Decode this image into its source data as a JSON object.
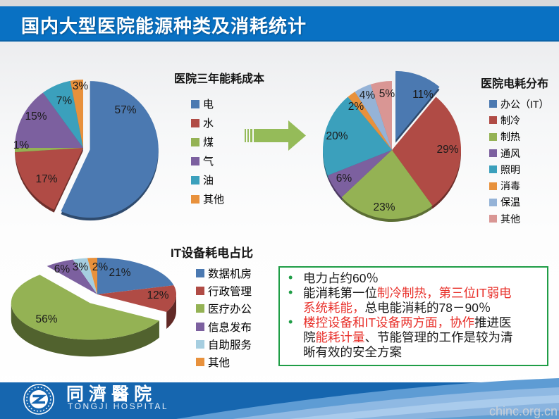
{
  "slide": {
    "title": "国内大型医院能源种类及消耗统计",
    "watermark": "chinc.org.cn"
  },
  "theme": {
    "titlebar_color": "#0971C3",
    "footer_color": "#1666AF",
    "arrow_color": "#95BB59"
  },
  "chart_data": [
    {
      "type": "pie",
      "title": "医院三年能耗成本",
      "categories": [
        "电",
        "水",
        "煤",
        "气",
        "油",
        "其他"
      ],
      "values": [
        57,
        17,
        1,
        15,
        7,
        3
      ],
      "labels": [
        "57%",
        "17%",
        "1%",
        "15%",
        "7%",
        "3%"
      ],
      "colors": [
        "#4B79B1",
        "#B04B45",
        "#94B254",
        "#7C609F",
        "#3BA0BC",
        "#E8913C"
      ],
      "exploded_index": 0,
      "legend_position": "right",
      "unit": "%"
    },
    {
      "type": "pie",
      "title": "医院电耗分布",
      "categories": [
        "办公（IT）",
        "制冷",
        "制热",
        "通风",
        "照明",
        "消毒",
        "保温",
        "其他"
      ],
      "values": [
        11,
        29,
        23,
        6,
        20,
        2,
        4,
        5
      ],
      "labels": [
        "11%",
        "29%",
        "23%",
        "6%",
        "20%",
        "2%",
        "4%",
        "5%"
      ],
      "colors": [
        "#4B79B1",
        "#B04B45",
        "#94B254",
        "#7C609F",
        "#3BA0BC",
        "#E8913C",
        "#95B3D7",
        "#D99694"
      ],
      "exploded_index": 0,
      "legend_position": "right",
      "unit": "%"
    },
    {
      "type": "pie",
      "style": "3d",
      "title": "IT设备耗电占比",
      "categories": [
        "数据机房",
        "行政管理",
        "医疗办公",
        "信息发布",
        "自助服务",
        "其他"
      ],
      "values": [
        21,
        12,
        56,
        6,
        3,
        2
      ],
      "labels": [
        "21%",
        "12%",
        "56%",
        "6%",
        "3%",
        "2%"
      ],
      "colors": [
        "#4B79B1",
        "#B04B45",
        "#94B254",
        "#7C609F",
        "#A6CEE0",
        "#E8913C"
      ],
      "exploded_index": 2,
      "legend_position": "right",
      "unit": "%"
    }
  ],
  "summary_box": {
    "border_color": "#1F9D46",
    "bullet_color": "#1F9D46",
    "highlight_color": "#E8302A",
    "text_color": "#1A1A1A",
    "bullets": [
      {
        "segments": [
          {
            "text": "电力占约60％",
            "color": "black"
          }
        ]
      },
      {
        "segments": [
          {
            "text": "能消耗第一位",
            "color": "black"
          },
          {
            "text": "制冷制热，第三位IT弱电",
            "color": "red"
          },
          {
            "br": true
          },
          {
            "text": "系统耗能，",
            "color": "red"
          },
          {
            "text": "总电能消耗的78－90％",
            "color": "black"
          }
        ]
      },
      {
        "segments": [
          {
            "text": "楼控设备和IT设备两方面，协作",
            "color": "red"
          },
          {
            "text": "推进医",
            "color": "black"
          },
          {
            "br": true
          },
          {
            "text": "院",
            "color": "black"
          },
          {
            "text": "能耗计量",
            "color": "red"
          },
          {
            "text": "、节能管理的工作是较为清",
            "color": "black"
          },
          {
            "br": true
          },
          {
            "text": "晰有效的安全方案",
            "color": "black"
          }
        ]
      }
    ]
  },
  "footer": {
    "logo_cn": "同濟醫院",
    "logo_en": "TONGJI HOSPITAL"
  }
}
